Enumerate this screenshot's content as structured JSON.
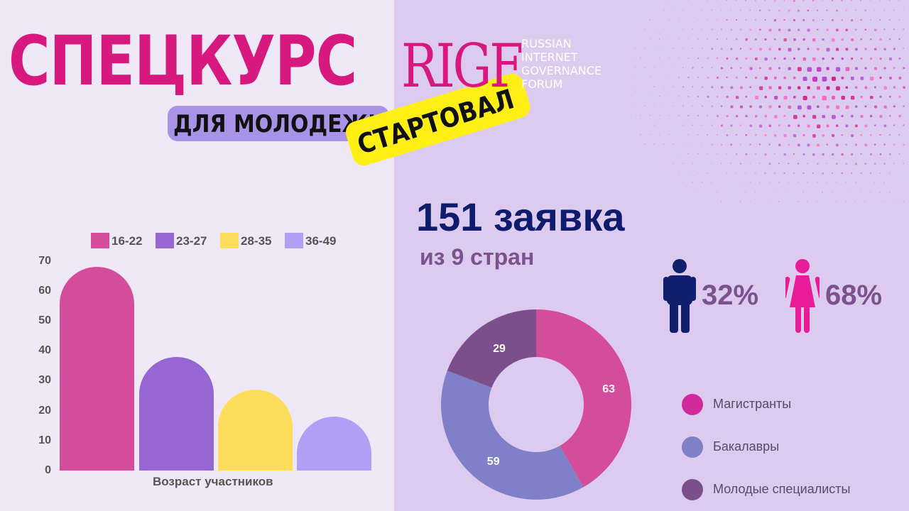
{
  "header": {
    "title": "СПЕЦКУРС",
    "subtitle": "ДЛЯ МОЛОДЕЖИ",
    "started": "СТАРТОВАЛ",
    "logo": "RIGF",
    "logo_lines": [
      "RUSSIAN",
      "INTERNET",
      "GOVERNANCE",
      "FORUM"
    ]
  },
  "stats": {
    "applications": "151 заявка",
    "countries": "из 9 стран",
    "male_pct": "32%",
    "female_pct": "68%"
  },
  "colors": {
    "brand_pink": "#d6187f",
    "navy": "#0f1b6d",
    "purple_text": "#7b528e",
    "male_icon": "#10206e",
    "female_icon": "#e81c99"
  },
  "icons": [
    "male-person-icon",
    "female-person-icon"
  ],
  "chart_data": [
    {
      "type": "bar",
      "categories": [
        "16-22",
        "23-27",
        "28-35",
        "36-49"
      ],
      "values": [
        68,
        38,
        27,
        18
      ],
      "colors": [
        "#d34d9b",
        "#9566d4",
        "#ffdd5c",
        "#b19ef7"
      ],
      "legend": [
        "16-22",
        "23-27",
        "28-35",
        "36-49"
      ],
      "legend_position": "top",
      "xlabel": "Возраст участников",
      "ylabel": "",
      "ylim": [
        0,
        70
      ],
      "yticks": [
        0,
        10,
        20,
        30,
        40,
        50,
        60,
        70
      ],
      "grid": false
    },
    {
      "type": "pie",
      "donut": true,
      "labels": [
        "Магистранты",
        "Бакалавры",
        "Молодые специалисты"
      ],
      "values": [
        63,
        59,
        29
      ],
      "colors": [
        "#d34d9b",
        "#8080c8",
        "#7b4f8c"
      ],
      "legend_position": "right"
    }
  ]
}
